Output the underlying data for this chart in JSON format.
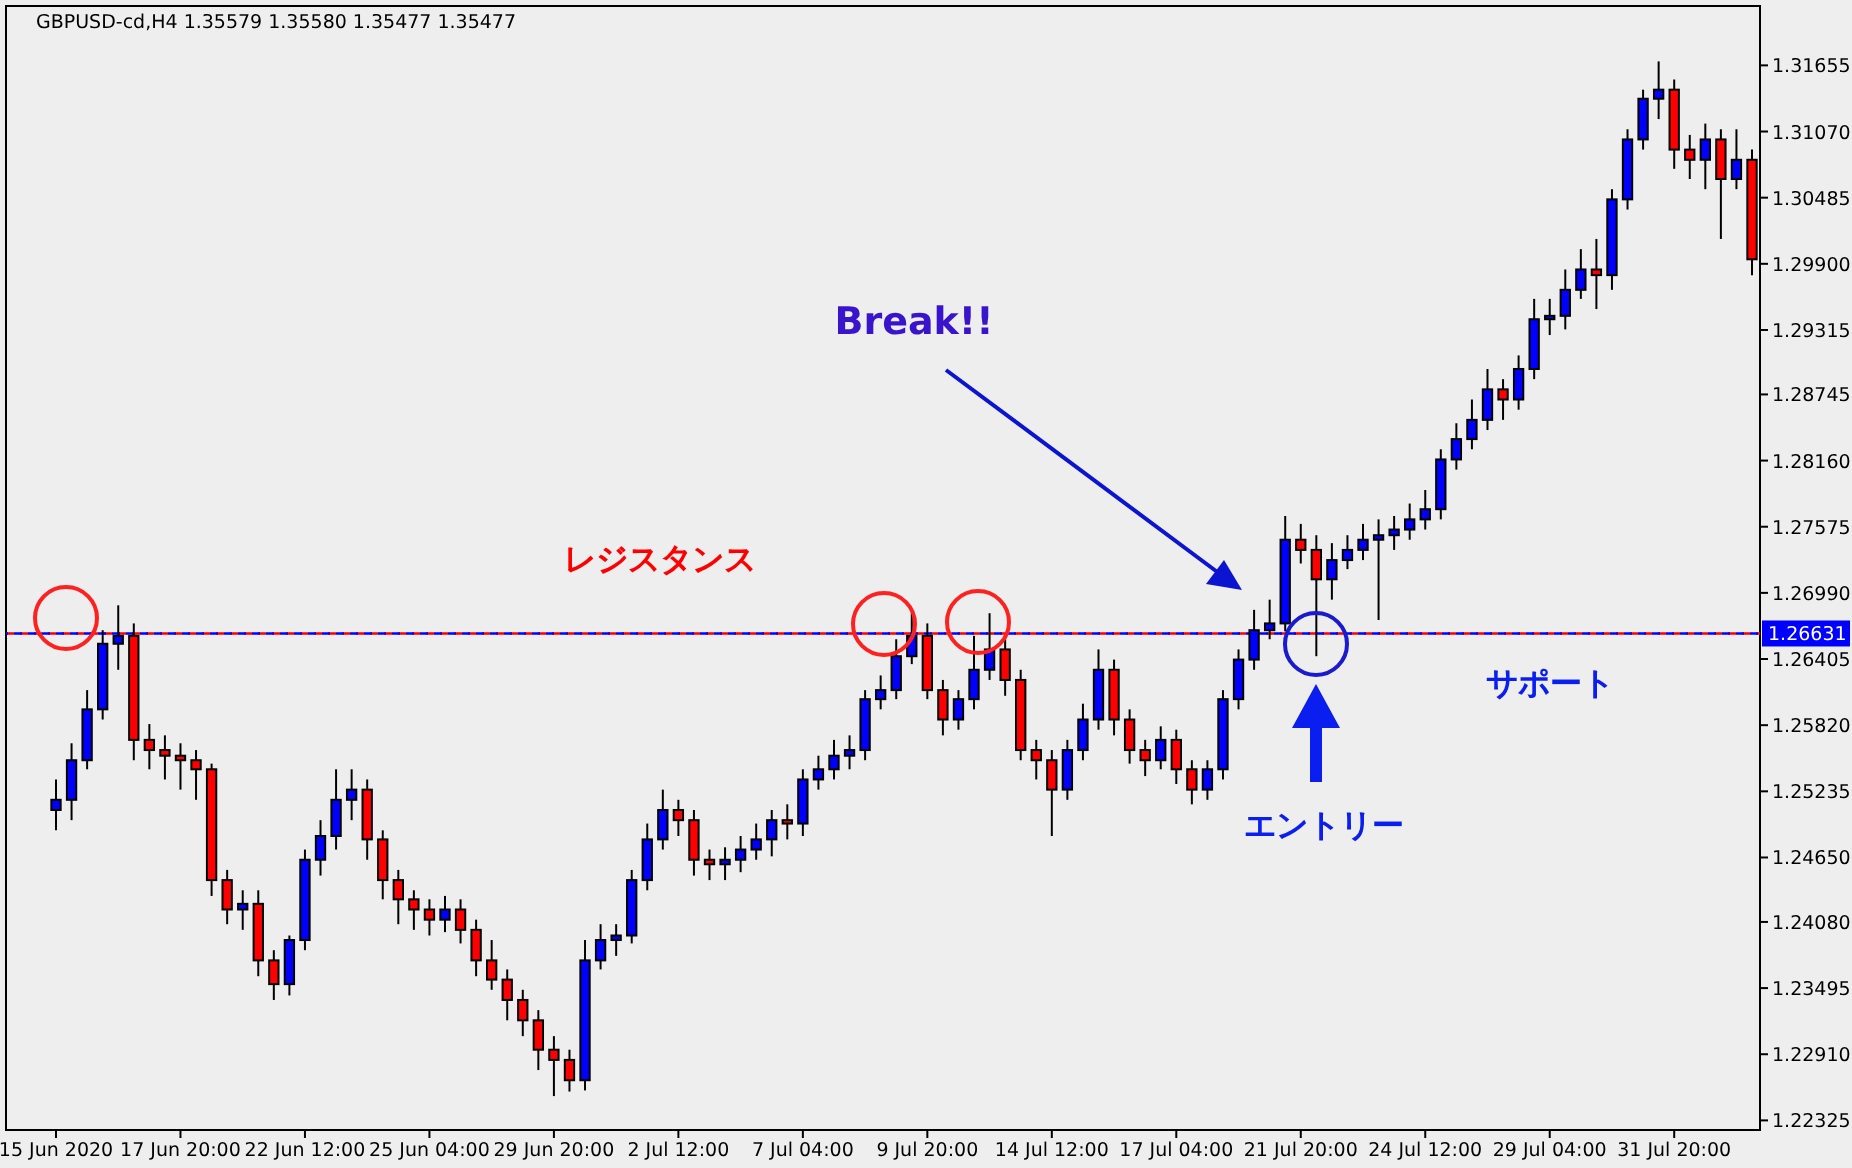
{
  "chart_data": {
    "type": "candlestick",
    "title": "GBPUSD-cd,H4  1.35579 1.35580 1.35477 1.35477",
    "categories": [
      "15 Jun 2020",
      null,
      null,
      null,
      null,
      null,
      null,
      null,
      "17 Jun 20:00",
      null,
      null,
      null,
      null,
      null,
      null,
      null,
      "22 Jun 12:00",
      null,
      null,
      null,
      null,
      null,
      null,
      null,
      "25 Jun 04:00",
      null,
      null,
      null,
      null,
      null,
      null,
      null,
      "29 Jun 20:00",
      null,
      null,
      null,
      null,
      null,
      null,
      null,
      "2 Jul 12:00",
      null,
      null,
      null,
      null,
      null,
      null,
      null,
      "7 Jul 04:00",
      null,
      null,
      null,
      null,
      null,
      null,
      null,
      "9 Jul 20:00",
      null,
      null,
      null,
      null,
      null,
      null,
      null,
      "14 Jul 12:00",
      null,
      null,
      null,
      null,
      null,
      null,
      null,
      "17 Jul 04:00",
      null,
      null,
      null,
      null,
      null,
      null,
      null,
      "21 Jul 20:00",
      null,
      null,
      null,
      null,
      null,
      null,
      null,
      "24 Jul 12:00",
      null,
      null,
      null,
      null,
      null,
      null,
      null,
      "29 Jul 04:00",
      null,
      null,
      null,
      null,
      null,
      null,
      null,
      "31 Jul 20:00",
      null,
      null,
      null,
      null,
      null
    ],
    "ohlc": [
      [
        1.2507,
        1.2534,
        1.2489,
        1.2516
      ],
      [
        1.2516,
        1.2566,
        1.2498,
        1.2551
      ],
      [
        1.2551,
        1.2613,
        1.2543,
        1.2596
      ],
      [
        1.2596,
        1.2666,
        1.2587,
        1.2654
      ],
      [
        1.2654,
        1.2688,
        1.2631,
        1.2661
      ],
      [
        1.2661,
        1.2672,
        1.2551,
        1.2569
      ],
      [
        1.2569,
        1.2583,
        1.2543,
        1.256
      ],
      [
        1.256,
        1.2573,
        1.2534,
        1.2555
      ],
      [
        1.2555,
        1.2566,
        1.2525,
        1.2551
      ],
      [
        1.2551,
        1.256,
        1.2516,
        1.2543
      ],
      [
        1.2543,
        1.2548,
        1.2431,
        1.2445
      ],
      [
        1.2445,
        1.2454,
        1.2406,
        1.2419
      ],
      [
        1.2419,
        1.2436,
        1.2401,
        1.2424
      ],
      [
        1.2424,
        1.2436,
        1.236,
        1.2374
      ],
      [
        1.2374,
        1.2383,
        1.2339,
        1.2353
      ],
      [
        1.2353,
        1.2396,
        1.2343,
        1.2392
      ],
      [
        1.2392,
        1.2472,
        1.2383,
        1.2463
      ],
      [
        1.2463,
        1.2498,
        1.2449,
        1.2484
      ],
      [
        1.2484,
        1.2543,
        1.2472,
        1.2516
      ],
      [
        1.2516,
        1.2543,
        1.2498,
        1.2525
      ],
      [
        1.2525,
        1.2534,
        1.2463,
        1.2481
      ],
      [
        1.2481,
        1.2489,
        1.2428,
        1.2445
      ],
      [
        1.2445,
        1.2454,
        1.2406,
        1.2428
      ],
      [
        1.2428,
        1.2436,
        1.2401,
        1.2419
      ],
      [
        1.2419,
        1.2428,
        1.2396,
        1.241
      ],
      [
        1.241,
        1.2431,
        1.2399,
        1.2419
      ],
      [
        1.2419,
        1.2428,
        1.2389,
        1.2401
      ],
      [
        1.2401,
        1.241,
        1.236,
        1.2374
      ],
      [
        1.2374,
        1.2392,
        1.2348,
        1.2357
      ],
      [
        1.2357,
        1.2366,
        1.2321,
        1.2339
      ],
      [
        1.2339,
        1.2348,
        1.2307,
        1.2321
      ],
      [
        1.2321,
        1.233,
        1.2277,
        1.2295
      ],
      [
        1.2295,
        1.2307,
        1.2254,
        1.2286
      ],
      [
        1.2286,
        1.2295,
        1.2258,
        1.2268
      ],
      [
        1.2268,
        1.2392,
        1.2259,
        1.2374
      ],
      [
        1.2374,
        1.2406,
        1.2366,
        1.2392
      ],
      [
        1.2392,
        1.2406,
        1.2378,
        1.2396
      ],
      [
        1.2396,
        1.2454,
        1.2389,
        1.2445
      ],
      [
        1.2445,
        1.2495,
        1.2436,
        1.2481
      ],
      [
        1.2481,
        1.2525,
        1.2472,
        1.2507
      ],
      [
        1.2507,
        1.2516,
        1.2484,
        1.2498
      ],
      [
        1.2498,
        1.2507,
        1.2449,
        1.2463
      ],
      [
        1.2463,
        1.2472,
        1.2445,
        1.2459
      ],
      [
        1.2459,
        1.2474,
        1.2445,
        1.2463
      ],
      [
        1.2463,
        1.2484,
        1.2452,
        1.2472
      ],
      [
        1.2472,
        1.2495,
        1.2463,
        1.2481
      ],
      [
        1.2481,
        1.2507,
        1.2466,
        1.2498
      ],
      [
        1.2498,
        1.2512,
        1.2481,
        1.2495
      ],
      [
        1.2495,
        1.2543,
        1.2484,
        1.2534
      ],
      [
        1.2534,
        1.2555,
        1.2525,
        1.2543
      ],
      [
        1.2543,
        1.2569,
        1.2534,
        1.2555
      ],
      [
        1.2555,
        1.2573,
        1.2543,
        1.256
      ],
      [
        1.256,
        1.2613,
        1.2551,
        1.2605
      ],
      [
        1.2605,
        1.2626,
        1.2596,
        1.2613
      ],
      [
        1.2613,
        1.2658,
        1.2605,
        1.2643
      ],
      [
        1.2643,
        1.2684,
        1.2636,
        1.2661
      ],
      [
        1.2661,
        1.2672,
        1.2605,
        1.2613
      ],
      [
        1.2613,
        1.2622,
        1.2573,
        1.2587
      ],
      [
        1.2587,
        1.2613,
        1.2578,
        1.2605
      ],
      [
        1.2605,
        1.2661,
        1.2596,
        1.2631
      ],
      [
        1.2631,
        1.2681,
        1.2622,
        1.2649
      ],
      [
        1.2649,
        1.2661,
        1.2608,
        1.2622
      ],
      [
        1.2622,
        1.2631,
        1.2551,
        1.256
      ],
      [
        1.256,
        1.2569,
        1.2534,
        1.2551
      ],
      [
        1.2551,
        1.256,
        1.2484,
        1.2525
      ],
      [
        1.2525,
        1.2569,
        1.2516,
        1.256
      ],
      [
        1.256,
        1.2601,
        1.2551,
        1.2587
      ],
      [
        1.2587,
        1.2649,
        1.2578,
        1.2631
      ],
      [
        1.2631,
        1.264,
        1.2573,
        1.2587
      ],
      [
        1.2587,
        1.2596,
        1.2548,
        1.256
      ],
      [
        1.256,
        1.2569,
        1.2537,
        1.2551
      ],
      [
        1.2551,
        1.2581,
        1.2543,
        1.2569
      ],
      [
        1.2569,
        1.2578,
        1.253,
        1.2543
      ],
      [
        1.2543,
        1.2551,
        1.2512,
        1.2525
      ],
      [
        1.2525,
        1.2551,
        1.2516,
        1.2543
      ],
      [
        1.2543,
        1.2613,
        1.2534,
        1.2605
      ],
      [
        1.2605,
        1.2649,
        1.2596,
        1.264
      ],
      [
        1.264,
        1.2684,
        1.2631,
        1.2666
      ],
      [
        1.2666,
        1.2693,
        1.2658,
        1.2672
      ],
      [
        1.2672,
        1.2767,
        1.2665,
        1.2746
      ],
      [
        1.2746,
        1.276,
        1.2725,
        1.2737
      ],
      [
        1.2737,
        1.275,
        1.2643,
        1.2711
      ],
      [
        1.2711,
        1.2743,
        1.2693,
        1.2728
      ],
      [
        1.2728,
        1.275,
        1.272,
        1.2737
      ],
      [
        1.2737,
        1.276,
        1.2728,
        1.2746
      ],
      [
        1.2746,
        1.2764,
        1.2675,
        1.275
      ],
      [
        1.275,
        1.2767,
        1.2737,
        1.2755
      ],
      [
        1.2755,
        1.2778,
        1.2746,
        1.2764
      ],
      [
        1.2764,
        1.279,
        1.2755,
        1.2773
      ],
      [
        1.2773,
        1.2826,
        1.2764,
        1.2817
      ],
      [
        1.2817,
        1.2849,
        1.2808,
        1.2835
      ],
      [
        1.2835,
        1.287,
        1.2826,
        1.2852
      ],
      [
        1.2852,
        1.2897,
        1.2843,
        1.2879
      ],
      [
        1.2879,
        1.2888,
        1.2852,
        1.287
      ],
      [
        1.287,
        1.2909,
        1.2861,
        1.2897
      ],
      [
        1.2897,
        1.2959,
        1.2888,
        1.2941
      ],
      [
        1.2941,
        1.2959,
        1.2927,
        1.2944
      ],
      [
        1.2944,
        1.2985,
        1.2932,
        1.2967
      ],
      [
        1.2967,
        1.3003,
        1.2959,
        1.2985
      ],
      [
        1.2985,
        1.3012,
        1.295,
        1.298
      ],
      [
        1.298,
        1.3056,
        1.2967,
        1.3047
      ],
      [
        1.3047,
        1.3109,
        1.3038,
        1.31
      ],
      [
        1.31,
        1.3144,
        1.3091,
        1.3136
      ],
      [
        1.3136,
        1.3169,
        1.3118,
        1.3144
      ],
      [
        1.3144,
        1.3153,
        1.3074,
        1.3091
      ],
      [
        1.3091,
        1.3104,
        1.3065,
        1.3082
      ],
      [
        1.3082,
        1.3114,
        1.3056,
        1.31
      ],
      [
        1.31,
        1.3109,
        1.3012,
        1.3065
      ],
      [
        1.3065,
        1.3109,
        1.3056,
        1.3082
      ],
      [
        1.3082,
        1.3091,
        1.298,
        1.2994
      ]
    ],
    "colors": [
      "#0000ff",
      "#0000ff",
      "#0000ff",
      "#0000ff",
      "#0000ff",
      "#ff0000",
      "#ff0000",
      "#ff0000",
      "#ff0000",
      "#ff0000",
      "#ff0000",
      "#ff0000",
      "#0000ff",
      "#ff0000",
      "#ff0000",
      "#0000ff",
      "#0000ff",
      "#0000ff",
      "#0000ff",
      "#0000ff",
      "#ff0000",
      "#ff0000",
      "#ff0000",
      "#ff0000",
      "#ff0000",
      "#0000ff",
      "#ff0000",
      "#ff0000",
      "#ff0000",
      "#ff0000",
      "#ff0000",
      "#ff0000",
      "#ff0000",
      "#ff0000",
      "#0000ff",
      "#0000ff",
      "#0000ff",
      "#0000ff",
      "#0000ff",
      "#0000ff",
      "#ff0000",
      "#ff0000",
      "#ff0000",
      "#0000ff",
      "#0000ff",
      "#0000ff",
      "#0000ff",
      "#ff0000",
      "#0000ff",
      "#0000ff",
      "#0000ff",
      "#0000ff",
      "#0000ff",
      "#0000ff",
      "#0000ff",
      "#0000ff",
      "#ff0000",
      "#ff0000",
      "#0000ff",
      "#0000ff",
      "#0000ff",
      "#ff0000",
      "#ff0000",
      "#ff0000",
      "#ff0000",
      "#0000ff",
      "#0000ff",
      "#0000ff",
      "#ff0000",
      "#ff0000",
      "#ff0000",
      "#0000ff",
      "#ff0000",
      "#ff0000",
      "#0000ff",
      "#0000ff",
      "#0000ff",
      "#0000ff",
      "#0000ff",
      "#0000ff",
      "#ff0000",
      "#ff0000",
      "#0000ff",
      "#0000ff",
      "#0000ff",
      "#0000ff",
      "#0000ff",
      "#0000ff",
      "#0000ff",
      "#0000ff",
      "#0000ff",
      "#0000ff",
      "#0000ff",
      "#ff0000",
      "#0000ff",
      "#0000ff",
      "#0000ff",
      "#0000ff",
      "#0000ff",
      "#ff0000",
      "#0000ff",
      "#0000ff",
      "#0000ff",
      "#0000ff",
      "#ff0000",
      "#ff0000",
      "#0000ff",
      "#ff0000",
      "#0000ff",
      "#ff0000"
    ],
    "ylim": [
      1.2224,
      1.3218
    ],
    "yticks": [
      1.31655,
      {
        "value": 1.3107,
        "label": "1.31070"
      },
      1.30485,
      {
        "value": 1.299,
        "label": "1.29900"
      },
      1.29315,
      1.28745,
      {
        "value": 1.2816,
        "label": "1.28160"
      },
      1.27575,
      {
        "value": 1.2699,
        "label": "1.26990"
      },
      1.26405,
      {
        "value": 1.2582,
        "label": "1.25820"
      },
      1.25235,
      {
        "value": 1.2465,
        "label": "1.24650"
      },
      {
        "value": 1.2408,
        "label": "1.24080"
      },
      1.23495,
      {
        "value": 1.2291,
        "label": "1.22910"
      },
      1.22325
    ],
    "tick_labels": "xy",
    "grid": false,
    "ref_lines": [
      {
        "axis": "y",
        "value": 1.26631,
        "label": "レジスタンス",
        "color": "#ff0000",
        "line_style": "dashed"
      },
      {
        "axis": "y",
        "value": 1.26631,
        "label": "1.26631",
        "color": "#0000ff",
        "line_style": "dashed"
      }
    ],
    "annotations": [
      "Break!!",
      "エントリー",
      "サポート"
    ]
  }
}
